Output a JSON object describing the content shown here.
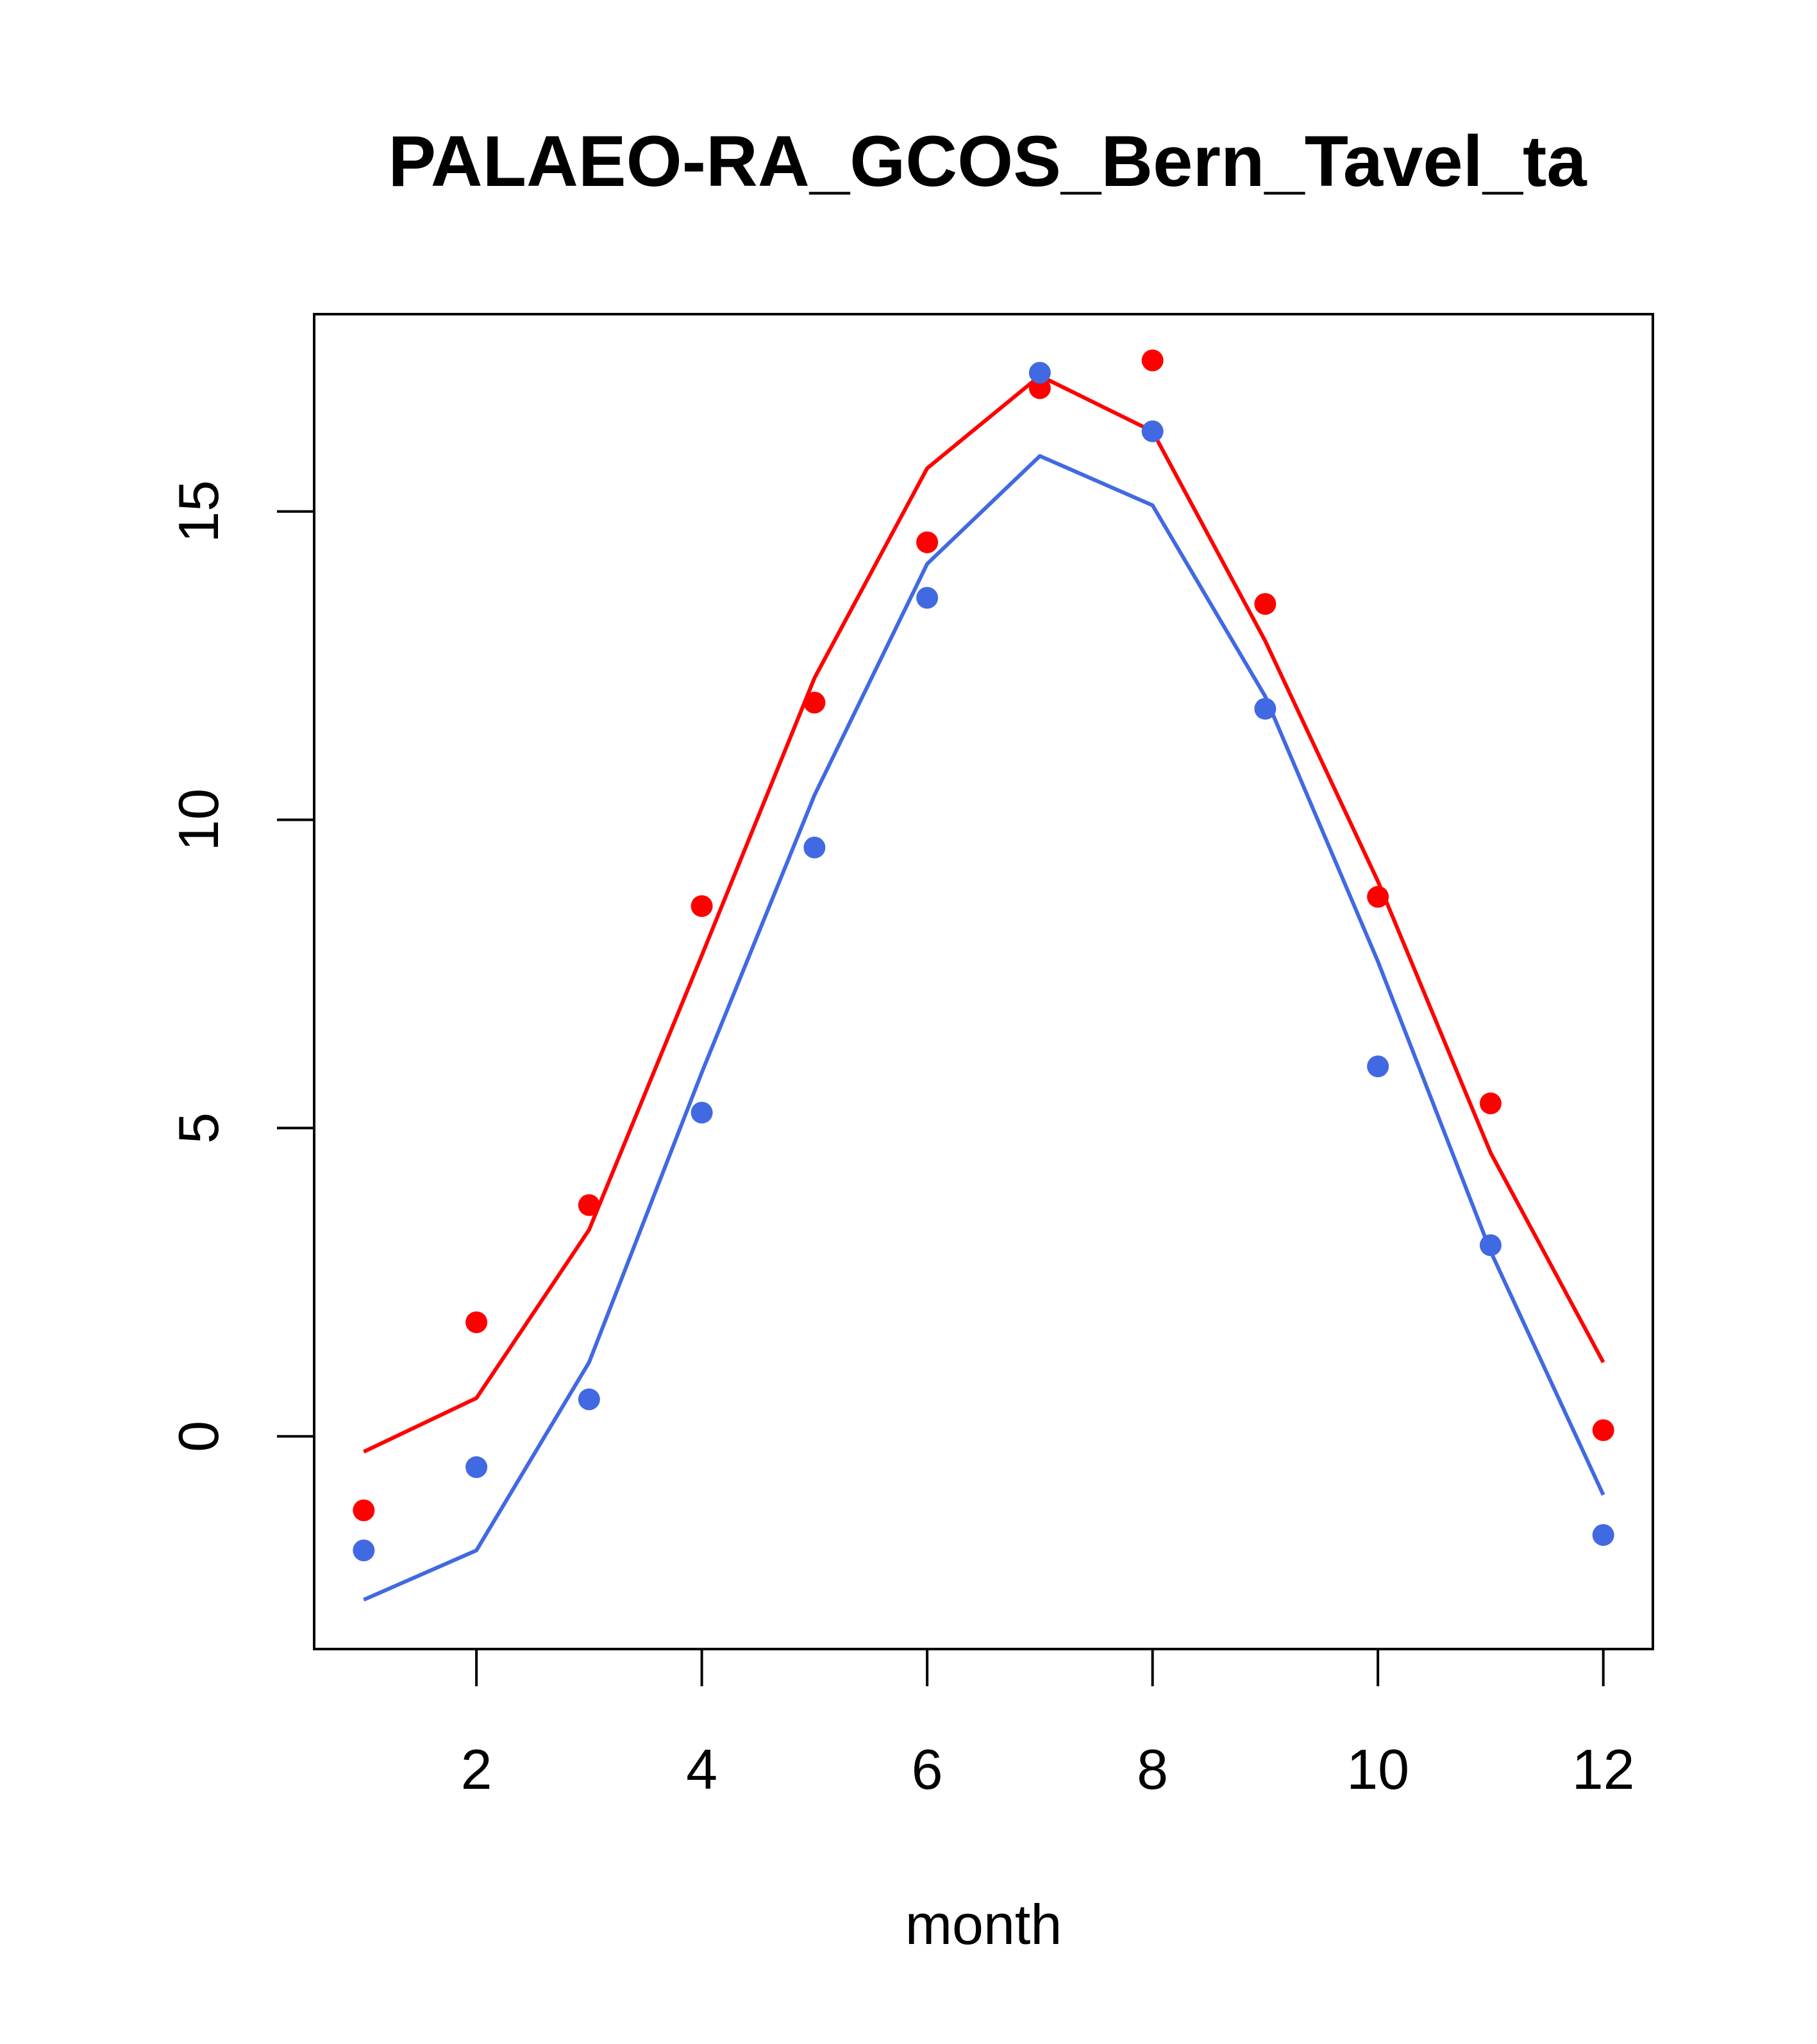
{
  "chart_data": {
    "type": "line",
    "title": "PALAEO-RA_GCOS_Bern_Tavel_ta",
    "xlabel": "month",
    "ylabel": "",
    "xlim": [
      0.56,
      12.44
    ],
    "ylim": [
      -3.45,
      18.2
    ],
    "xticks": [
      2,
      4,
      6,
      8,
      10,
      12
    ],
    "yticks": [
      0,
      5,
      10,
      15
    ],
    "grid": false,
    "x": [
      1,
      2,
      3,
      4,
      5,
      6,
      7,
      8,
      9,
      10,
      11,
      12
    ],
    "series": [
      {
        "color": "#ff0000",
        "line": [
          -0.25,
          0.62,
          3.35,
          7.8,
          12.3,
          15.7,
          17.2,
          16.3,
          12.9,
          9.0,
          4.6,
          1.2
        ],
        "points": [
          -1.2,
          1.85,
          3.75,
          8.6,
          11.9,
          14.5,
          17.0,
          17.45,
          13.5,
          8.75,
          5.4,
          0.1
        ]
      },
      {
        "color": "#4169e1",
        "line": [
          -2.65,
          -1.85,
          1.2,
          5.9,
          10.4,
          14.15,
          15.9,
          15.1,
          12.0,
          7.7,
          3.0,
          -0.95
        ],
        "points": [
          -1.85,
          -0.5,
          0.6,
          5.25,
          9.55,
          13.6,
          17.25,
          16.3,
          11.8,
          6.0,
          3.1,
          -1.6
        ]
      }
    ]
  }
}
